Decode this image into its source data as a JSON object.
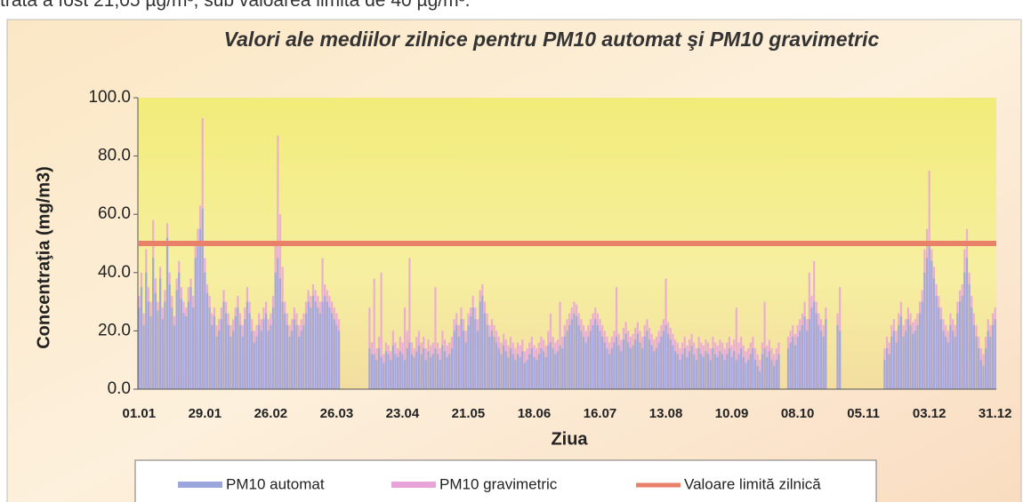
{
  "header_text": "trată a fost 21,05 µg/m³, sub valoarea limită de 40 µg/m³.",
  "chart_data": {
    "type": "bar",
    "title": "Valori ale mediilor zilnice pentru PM10 automat şi PM10 gravimetric",
    "y_label": "Concentraţia (mg/m3)",
    "x_label": "Ziua",
    "ylim": [
      0,
      100
    ],
    "yticks": [
      {
        "value": 0,
        "label": "0.0"
      },
      {
        "value": 20,
        "label": "20.0"
      },
      {
        "value": 40,
        "label": "40.0"
      },
      {
        "value": 60,
        "label": "60.0"
      },
      {
        "value": 80,
        "label": "80.0"
      },
      {
        "value": 100,
        "label": "100.0"
      }
    ],
    "categories": [
      "01.01",
      null,
      null,
      null,
      null,
      null,
      null,
      null,
      null,
      null,
      null,
      null,
      null,
      null,
      null,
      null,
      null,
      null,
      null,
      null,
      null,
      null,
      null,
      null,
      null,
      null,
      null,
      null,
      "29.01",
      null,
      null,
      null,
      null,
      null,
      null,
      null,
      null,
      null,
      null,
      null,
      null,
      null,
      null,
      null,
      null,
      null,
      null,
      null,
      null,
      null,
      null,
      null,
      null,
      null,
      null,
      null,
      "26.02",
      null,
      null,
      null,
      null,
      null,
      null,
      null,
      null,
      null,
      null,
      null,
      null,
      null,
      null,
      null,
      null,
      null,
      null,
      null,
      null,
      null,
      null,
      null,
      null,
      null,
      null,
      null,
      "26.03",
      null,
      null,
      null,
      null,
      null,
      null,
      null,
      null,
      null,
      null,
      null,
      null,
      null,
      null,
      null,
      null,
      null,
      null,
      null,
      null,
      null,
      null,
      null,
      null,
      null,
      null,
      null,
      "23.04",
      null,
      null,
      null,
      null,
      null,
      null,
      null,
      null,
      null,
      null,
      null,
      null,
      null,
      null,
      null,
      null,
      null,
      null,
      null,
      null,
      null,
      null,
      null,
      null,
      null,
      null,
      null,
      "21.05",
      null,
      null,
      null,
      null,
      null,
      null,
      null,
      null,
      null,
      null,
      null,
      null,
      null,
      null,
      null,
      null,
      null,
      null,
      null,
      null,
      null,
      null,
      null,
      null,
      null,
      null,
      null,
      "18.06",
      null,
      null,
      null,
      null,
      null,
      null,
      null,
      null,
      null,
      null,
      null,
      null,
      null,
      null,
      null,
      null,
      null,
      null,
      null,
      null,
      null,
      null,
      null,
      null,
      null,
      null,
      null,
      "16.07",
      null,
      null,
      null,
      null,
      null,
      null,
      null,
      null,
      null,
      null,
      null,
      null,
      null,
      null,
      null,
      null,
      null,
      null,
      null,
      null,
      null,
      null,
      null,
      null,
      null,
      null,
      null,
      "13.08",
      null,
      null,
      null,
      null,
      null,
      null,
      null,
      null,
      null,
      null,
      null,
      null,
      null,
      null,
      null,
      null,
      null,
      null,
      null,
      null,
      null,
      null,
      null,
      null,
      null,
      null,
      null,
      "10.09",
      null,
      null,
      null,
      null,
      null,
      null,
      null,
      null,
      null,
      null,
      null,
      null,
      null,
      null,
      null,
      null,
      null,
      null,
      null,
      null,
      null,
      null,
      null,
      null,
      null,
      null,
      null,
      "08.10",
      null,
      null,
      null,
      null,
      null,
      null,
      null,
      null,
      null,
      null,
      null,
      null,
      null,
      null,
      null,
      null,
      null,
      null,
      null,
      null,
      null,
      null,
      null,
      null,
      null,
      null,
      null,
      "05.11",
      null,
      null,
      null,
      null,
      null,
      null,
      null,
      null,
      null,
      null,
      null,
      null,
      null,
      null,
      null,
      null,
      null,
      null,
      null,
      null,
      null,
      null,
      null,
      null,
      null,
      null,
      null,
      "03.12",
      null,
      null,
      null,
      null,
      null,
      null,
      null,
      null,
      null,
      null,
      null,
      null,
      null,
      null,
      null,
      null,
      null,
      null,
      null,
      null,
      null,
      null,
      null,
      null,
      null,
      null,
      null,
      "31.12"
    ],
    "series": [
      {
        "name": "PM10 automat",
        "color": "#9aa6dc",
        "values": [
          28,
          35,
          22,
          40,
          30,
          25,
          45,
          33,
          27,
          38,
          24,
          30,
          52,
          36,
          28,
          22,
          34,
          40,
          31,
          26,
          25,
          30,
          35,
          28,
          45,
          50,
          55,
          62,
          40,
          33,
          28,
          22,
          25,
          18,
          20,
          24,
          30,
          26,
          22,
          18,
          20,
          25,
          28,
          22,
          18,
          24,
          30,
          26,
          20,
          16,
          18,
          22,
          20,
          24,
          26,
          20,
          22,
          28,
          40,
          45,
          38,
          30,
          26,
          22,
          18,
          20,
          24,
          22,
          18,
          20,
          22,
          26,
          30,
          28,
          32,
          30,
          28,
          26,
          30,
          32,
          30,
          28,
          26,
          24,
          22,
          20,
          null,
          null,
          null,
          null,
          null,
          null,
          null,
          null,
          null,
          null,
          null,
          null,
          14,
          12,
          12,
          10,
          14,
          11,
          9,
          13,
          12,
          10,
          15,
          12,
          11,
          13,
          12,
          10,
          14,
          16,
          12,
          11,
          13,
          15,
          12,
          14,
          10,
          13,
          11,
          12,
          14,
          12,
          10,
          15,
          13,
          11,
          12,
          14,
          20,
          22,
          18,
          24,
          20,
          16,
          22,
          25,
          28,
          24,
          20,
          30,
          32,
          26,
          22,
          18,
          20,
          18,
          16,
          14,
          12,
          15,
          13,
          11,
          14,
          12,
          10,
          12,
          11,
          13,
          9,
          10,
          12,
          14,
          11,
          10,
          12,
          14,
          13,
          11,
          15,
          16,
          14,
          12,
          13,
          15,
          14,
          18,
          20,
          22,
          24,
          26,
          25,
          22,
          20,
          18,
          16,
          18,
          20,
          22,
          24,
          22,
          20,
          18,
          16,
          14,
          12,
          14,
          16,
          18,
          15,
          13,
          17,
          19,
          16,
          14,
          15,
          17,
          19,
          16,
          14,
          18,
          20,
          17,
          15,
          13,
          14,
          16,
          18,
          20,
          22,
          19,
          17,
          15,
          13,
          12,
          10,
          12,
          14,
          11,
          13,
          15,
          12,
          10,
          14,
          12,
          11,
          13,
          12,
          10,
          14,
          12,
          11,
          13,
          12,
          10,
          12,
          14,
          11,
          13,
          10,
          12,
          14,
          11,
          9,
          10,
          12,
          14,
          10,
          8,
          6,
          12,
          14,
          11,
          13,
          10,
          8,
          10,
          12,
          null,
          null,
          null,
          14,
          16,
          18,
          15,
          18,
          20,
          22,
          25,
          20,
          24,
          28,
          30,
          26,
          22,
          20,
          18,
          24,
          null,
          null,
          null,
          null,
          22,
          20,
          null,
          null,
          null,
          null,
          null,
          null,
          null,
          null,
          null,
          null,
          null,
          null,
          null,
          null,
          null,
          null,
          null,
          null,
          10,
          14,
          12,
          18,
          20,
          16,
          22,
          25,
          18,
          20,
          24,
          22,
          19,
          20,
          22,
          26,
          30,
          40,
          45,
          50,
          44,
          38,
          32,
          28,
          24,
          20,
          18,
          16,
          22,
          20,
          18,
          26,
          30,
          32,
          40,
          45,
          36,
          28,
          22,
          18,
          14,
          10,
          8,
          14,
          20,
          18,
          22,
          24
        ]
      },
      {
        "name": "PM10 gravimetric",
        "color": "#e8a4d8",
        "values": [
          32,
          40,
          26,
          48,
          35,
          30,
          58,
          38,
          30,
          42,
          28,
          34,
          57,
          40,
          32,
          25,
          38,
          44,
          35,
          30,
          28,
          35,
          38,
          32,
          50,
          55,
          63,
          93,
          45,
          36,
          32,
          26,
          28,
          22,
          24,
          28,
          34,
          30,
          26,
          22,
          24,
          28,
          32,
          26,
          22,
          28,
          35,
          30,
          24,
          20,
          22,
          26,
          24,
          28,
          30,
          24,
          26,
          32,
          50,
          87,
          60,
          42,
          30,
          26,
          22,
          24,
          28,
          26,
          22,
          24,
          26,
          30,
          34,
          32,
          36,
          34,
          32,
          30,
          45,
          36,
          34,
          32,
          30,
          28,
          26,
          24,
          null,
          null,
          null,
          null,
          null,
          null,
          null,
          null,
          null,
          null,
          null,
          null,
          28,
          16,
          38,
          14,
          18,
          40,
          12,
          16,
          15,
          13,
          20,
          16,
          14,
          18,
          16,
          28,
          20,
          45,
          16,
          14,
          18,
          20,
          16,
          18,
          14,
          17,
          15,
          16,
          35,
          16,
          14,
          20,
          17,
          15,
          16,
          18,
          24,
          26,
          22,
          28,
          24,
          20,
          26,
          28,
          32,
          28,
          24,
          34,
          36,
          30,
          26,
          22,
          24,
          22,
          20,
          18,
          16,
          19,
          17,
          15,
          18,
          16,
          14,
          16,
          15,
          17,
          13,
          14,
          16,
          18,
          15,
          14,
          16,
          18,
          17,
          15,
          20,
          26,
          18,
          16,
          17,
          30,
          18,
          22,
          24,
          26,
          28,
          30,
          29,
          26,
          24,
          22,
          20,
          22,
          24,
          26,
          28,
          26,
          24,
          22,
          20,
          18,
          16,
          18,
          20,
          35,
          19,
          17,
          21,
          23,
          20,
          18,
          19,
          21,
          23,
          20,
          18,
          22,
          24,
          21,
          19,
          17,
          18,
          20,
          22,
          24,
          38,
          23,
          21,
          19,
          17,
          16,
          14,
          16,
          18,
          15,
          17,
          19,
          16,
          14,
          18,
          16,
          15,
          17,
          16,
          14,
          18,
          16,
          15,
          17,
          16,
          14,
          16,
          18,
          15,
          17,
          28,
          16,
          18,
          15,
          13,
          14,
          16,
          18,
          14,
          12,
          10,
          16,
          30,
          15,
          17,
          14,
          12,
          14,
          16,
          null,
          null,
          null,
          18,
          20,
          22,
          19,
          22,
          24,
          26,
          30,
          24,
          40,
          32,
          44,
          30,
          26,
          24,
          22,
          28,
          null,
          null,
          null,
          null,
          26,
          35,
          null,
          null,
          null,
          null,
          null,
          null,
          null,
          null,
          null,
          null,
          null,
          null,
          null,
          null,
          null,
          null,
          null,
          null,
          14,
          18,
          16,
          22,
          24,
          20,
          26,
          30,
          22,
          24,
          28,
          26,
          23,
          24,
          26,
          30,
          34,
          48,
          55,
          75,
          48,
          42,
          36,
          32,
          28,
          24,
          22,
          20,
          26,
          24,
          22,
          30,
          34,
          36,
          48,
          55,
          40,
          32,
          26,
          22,
          18,
          14,
          12,
          18,
          24,
          22,
          26,
          28
        ]
      }
    ],
    "limit_line": {
      "name": "Valoare limită zilnică",
      "value": 50,
      "color": "#e8806a"
    }
  }
}
